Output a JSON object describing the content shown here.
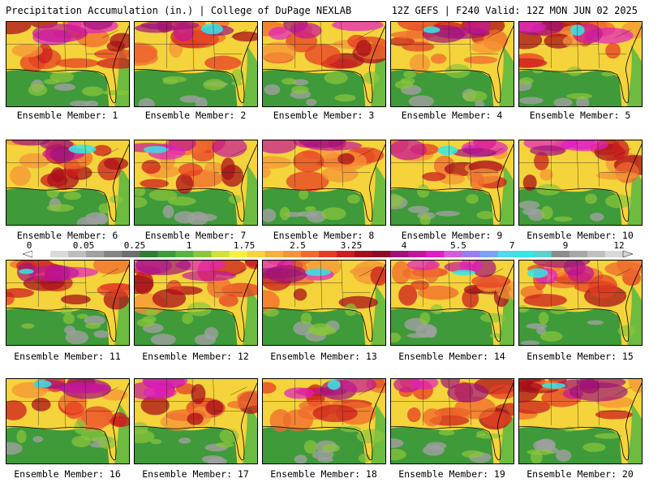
{
  "header": {
    "left": "Precipitation Accumulation (in.) | College of DuPage NEXLAB",
    "right": "12Z GEFS | F240 Valid: 12Z MON JUN 02 2025"
  },
  "panels": [
    {
      "label": "Ensemble Member: 1",
      "variant": 0
    },
    {
      "label": "Ensemble Member: 2",
      "variant": 1
    },
    {
      "label": "Ensemble Member: 3",
      "variant": 2
    },
    {
      "label": "Ensemble Member: 4",
      "variant": 3
    },
    {
      "label": "Ensemble Member: 5",
      "variant": 4
    },
    {
      "label": "Ensemble Member: 6",
      "variant": 5
    },
    {
      "label": "Ensemble Member: 7",
      "variant": 6
    },
    {
      "label": "Ensemble Member: 8",
      "variant": 7
    },
    {
      "label": "Ensemble Member: 9",
      "variant": 8
    },
    {
      "label": "Ensemble Member: 10",
      "variant": 9
    },
    {
      "label": "Ensemble Member: 11",
      "variant": 10
    },
    {
      "label": "Ensemble Member: 12",
      "variant": 11
    },
    {
      "label": "Ensemble Member: 13",
      "variant": 12
    },
    {
      "label": "Ensemble Member: 14",
      "variant": 13
    },
    {
      "label": "Ensemble Member: 15",
      "variant": 14
    },
    {
      "label": "Ensemble Member: 16",
      "variant": 15
    },
    {
      "label": "Ensemble Member: 17",
      "variant": 16
    },
    {
      "label": "Ensemble Member: 18",
      "variant": 17
    },
    {
      "label": "Ensemble Member: 19",
      "variant": 18
    },
    {
      "label": "Ensemble Member: 20",
      "variant": 19
    }
  ],
  "colorbar": {
    "ticks": [
      "0",
      "0.05",
      "0.25",
      "1",
      "1.75",
      "2.5",
      "3.25",
      "4",
      "5.5",
      "7",
      "9",
      "12"
    ],
    "colors": [
      "#ffffff",
      "#d9d9d9",
      "#bdbdbd",
      "#a0a0a0",
      "#848484",
      "#6e6e6e",
      "#2f7d32",
      "#3c9b3a",
      "#55b63f",
      "#8bc63a",
      "#cfe23c",
      "#f5f03a",
      "#f7d23c",
      "#f7b03c",
      "#f59436",
      "#f06a2d",
      "#e53d24",
      "#cc1e1e",
      "#a90f1a",
      "#8a0c2a",
      "#a0127a",
      "#c4169a",
      "#e11ec6",
      "#d45bd9",
      "#9b7cf0",
      "#7aa2f5",
      "#4dd9ee",
      "#35e6e6",
      "#5ccfcf",
      "#8c8c8c",
      "#a7a7a7",
      "#c0c0c0",
      "#d8d8d8"
    ]
  }
}
